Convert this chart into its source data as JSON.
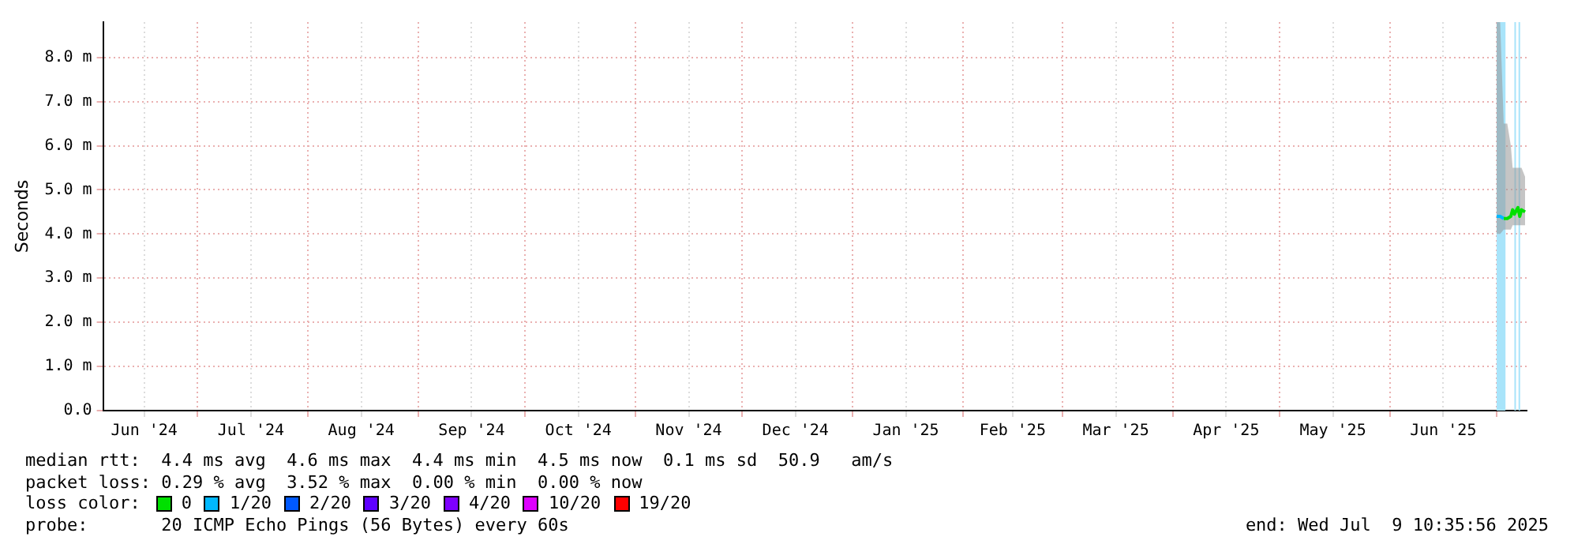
{
  "chart_data": {
    "type": "line",
    "ylabel": "Seconds",
    "legend_title": "loss color:",
    "legend": "bottom",
    "grid": true,
    "marker": "none",
    "line_style": "solid",
    "xlim": [
      "2024-06-04T10:35",
      "2025-07-09T10:35"
    ],
    "xticks": [
      {
        "value": "2024-06-16",
        "label": "Jun '24"
      },
      {
        "value": "2024-07-01",
        "label": null
      },
      {
        "value": "2024-07-16",
        "label": "Jul '24"
      },
      {
        "value": "2024-08-01",
        "label": null
      },
      {
        "value": "2024-08-16",
        "label": "Aug '24"
      },
      {
        "value": "2024-09-01",
        "label": null
      },
      {
        "value": "2024-09-16",
        "label": "Sep '24"
      },
      {
        "value": "2024-10-01",
        "label": null
      },
      {
        "value": "2024-10-16",
        "label": "Oct '24"
      },
      {
        "value": "2024-11-01",
        "label": null
      },
      {
        "value": "2024-11-16",
        "label": "Nov '24"
      },
      {
        "value": "2024-12-01",
        "label": null
      },
      {
        "value": "2024-12-16",
        "label": "Dec '24"
      },
      {
        "value": "2025-01-01",
        "label": null
      },
      {
        "value": "2025-01-16",
        "label": "Jan '25"
      },
      {
        "value": "2025-02-01",
        "label": null
      },
      {
        "value": "2025-02-15",
        "label": "Feb '25"
      },
      {
        "value": "2025-03-01",
        "label": null
      },
      {
        "value": "2025-03-16",
        "label": "Mar '25"
      },
      {
        "value": "2025-04-01",
        "label": null
      },
      {
        "value": "2025-04-16",
        "label": "Apr '25"
      },
      {
        "value": "2025-05-01",
        "label": null
      },
      {
        "value": "2025-05-16",
        "label": "May '25"
      },
      {
        "value": "2025-06-01",
        "label": null
      },
      {
        "value": "2025-06-16",
        "label": "Jun '25"
      },
      {
        "value": "2025-07-01",
        "label": null
      }
    ],
    "ylim": [
      0,
      8.8
    ],
    "yticks": [
      {
        "value": 0,
        "label": "0.0"
      },
      {
        "value": 1,
        "label": "1.0 m"
      },
      {
        "value": 2,
        "label": "2.0 m"
      },
      {
        "value": 3,
        "label": "3.0 m"
      },
      {
        "value": 4,
        "label": "4.0 m"
      },
      {
        "value": 5,
        "label": "5.0 m"
      },
      {
        "value": 6,
        "label": "6.0 m"
      },
      {
        "value": 7,
        "label": "7.0 m"
      },
      {
        "value": 8,
        "label": "8.0 m"
      }
    ],
    "bands": [
      {
        "axis": "x",
        "from": "2025-07-01",
        "to": "2025-07-03T12:00",
        "color": "#a8e4fa"
      },
      {
        "axis": "x",
        "from": "2025-07-06",
        "to": "2025-07-06T08:00",
        "color": "#a8e4fa"
      },
      {
        "axis": "x",
        "from": "2025-07-07T04:00",
        "to": "2025-07-07T10:00",
        "color": "#a8e4fa"
      }
    ],
    "series": [
      {
        "name": "0",
        "color": "#00e000",
        "x": [
          "2025-07-01",
          "2025-07-02",
          "2025-07-03",
          "2025-07-04",
          "2025-07-05",
          "2025-07-05T12:00",
          "2025-07-06",
          "2025-07-07",
          "2025-07-07T12:00",
          "2025-07-08",
          "2025-07-09"
        ],
        "values": [
          null,
          null,
          4.35,
          4.35,
          4.4,
          4.55,
          4.45,
          4.6,
          4.4,
          4.55,
          4.5
        ],
        "lower": [
          4.0,
          4.0,
          4.1,
          4.1,
          4.1,
          4.2,
          4.2,
          4.2,
          4.2,
          4.2,
          4.2
        ],
        "upper": [
          8.8,
          8.8,
          6.5,
          6.5,
          6.0,
          5.5,
          5.5,
          5.5,
          5.5,
          5.5,
          5.3
        ]
      },
      {
        "name": "1/20",
        "color": "#00b8ff",
        "x": [
          "2025-07-01",
          "2025-07-02",
          "2025-07-03"
        ],
        "values": [
          4.4,
          4.4,
          4.35
        ]
      },
      {
        "name": "2/20",
        "color": "#0059ff"
      },
      {
        "name": "3/20",
        "color": "#5e00ff"
      },
      {
        "name": "4/20",
        "color": "#7e00ff"
      },
      {
        "name": "10/20",
        "color": "#dd00ff"
      },
      {
        "name": "19/20",
        "color": "#ff0000"
      }
    ],
    "annotations": [
      "median rtt:  4.4 ms avg  4.6 ms max  4.4 ms min  4.5 ms now  0.1 ms sd  50.9   am/s",
      "packet loss: 0.29 % avg  3.52 % max  0.00 % min  0.00 % now",
      "probe:       20 ICMP Echo Pings (56 Bytes) every 60s",
      "end: Wed Jul  9 10:35:56 2025"
    ]
  }
}
